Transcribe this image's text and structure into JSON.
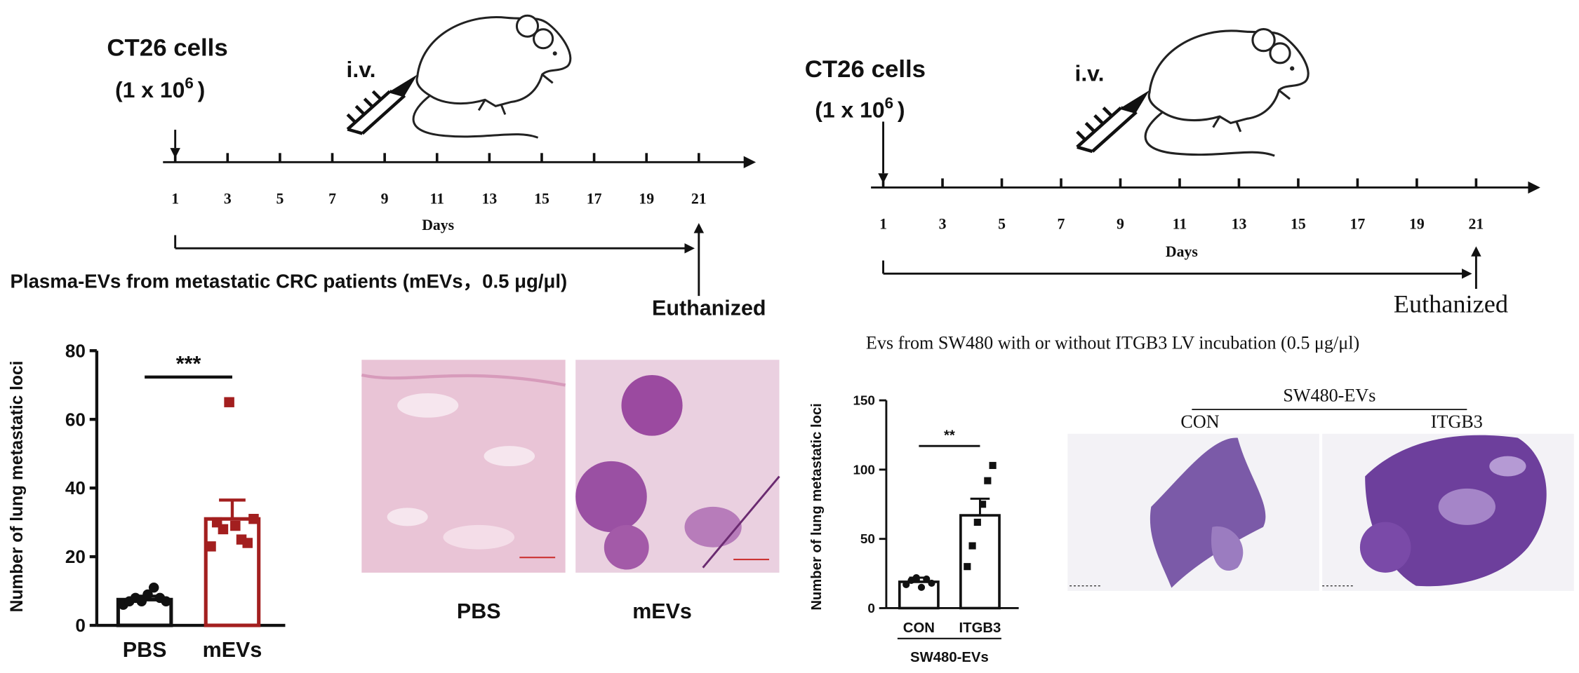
{
  "timelines": [
    {
      "cells": "CT26 cells",
      "dose": "(1 x 10",
      "exponent": "6",
      "dose_end": ")",
      "route": "i.v.",
      "days": [
        1,
        3,
        5,
        7,
        9,
        11,
        13,
        15,
        17,
        19,
        21
      ],
      "axis_label": "Days",
      "treatment": "Plasma-EVs from metastatic CRC patients (mEVs，0.5 μg/μl)",
      "endpoint": "Euthanized"
    },
    {
      "cells": "CT26 cells",
      "dose": "(1 x 10",
      "exponent": "6",
      "dose_end": ")",
      "route": "i.v.",
      "days": [
        1,
        3,
        5,
        7,
        9,
        11,
        13,
        15,
        17,
        19,
        21
      ],
      "axis_label": "Days",
      "treatment": "Evs from SW480 with or without  ITGB3  LV incubation (0.5 μg/μl)",
      "endpoint": "Euthanized"
    }
  ],
  "chart_data": [
    {
      "type": "bar",
      "ylabel": "Number of lung metastatic loci",
      "categories": [
        "PBS",
        "mEVs"
      ],
      "values": [
        7.5,
        31
      ],
      "errors": [
        1,
        5.5
      ],
      "colors": [
        "#111111",
        "#a31f1f"
      ],
      "points": [
        [
          6,
          7,
          8,
          7,
          9,
          11,
          8,
          7
        ],
        [
          23,
          30,
          28,
          65,
          29,
          25,
          24,
          31
        ]
      ],
      "ylim": [
        0,
        80
      ],
      "yticks": [
        0,
        20,
        40,
        60,
        80
      ],
      "significance": "***"
    },
    {
      "type": "bar",
      "ylabel": "Number of lung metastatic loci",
      "categories": [
        "CON",
        "ITGB3"
      ],
      "values": [
        19,
        67
      ],
      "errors": [
        3,
        12
      ],
      "colors": [
        "#111111",
        "#111111"
      ],
      "points": [
        [
          17,
          20,
          22,
          15,
          21,
          18
        ],
        [
          30,
          45,
          62,
          75,
          92,
          103
        ]
      ],
      "ylim": [
        0,
        150
      ],
      "yticks": [
        0,
        50,
        100,
        150
      ],
      "significance": "**",
      "xlabel": "SW480-EVs"
    }
  ],
  "histology": [
    {
      "labels": [
        "PBS",
        "mEVs"
      ]
    },
    {
      "group": "SW480-EVs",
      "labels": [
        "CON",
        "ITGB3"
      ]
    }
  ]
}
